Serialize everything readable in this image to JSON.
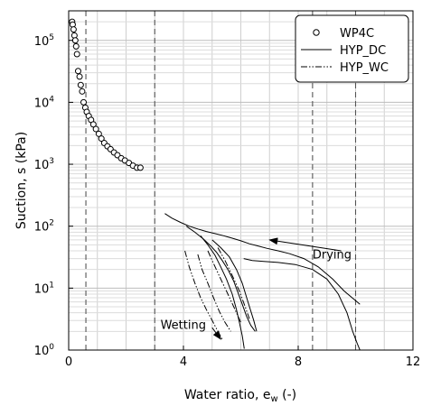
{
  "chart_data": {
    "type": "scatter",
    "xlabel": "Water ratio, e",
    "xlabel_subscript": "w",
    "xlabel_unit": "(-)",
    "ylabel": "Suction, s (kPa)",
    "xlim": [
      0,
      12
    ],
    "ylim": [
      1,
      300000
    ],
    "yscale": "log",
    "x_ticks": [
      0,
      4,
      8,
      12
    ],
    "y_ticks": [
      {
        "value": 1,
        "base": "10",
        "exp": "0"
      },
      {
        "value": 10,
        "base": "10",
        "exp": "1"
      },
      {
        "value": 100,
        "base": "10",
        "exp": "2"
      },
      {
        "value": 1000,
        "base": "10",
        "exp": "3"
      },
      {
        "value": 10000,
        "base": "10",
        "exp": "4"
      },
      {
        "value": 100000,
        "base": "10",
        "exp": "5"
      }
    ],
    "grid": true,
    "vertical_reference_lines": [
      0.6,
      3.0,
      8.5,
      10.0
    ],
    "legend": {
      "placement": "top-right",
      "entries": [
        {
          "label": "WP4C",
          "style": "circle-marker"
        },
        {
          "label": "HYP_DC",
          "style": "solid"
        },
        {
          "label": "HYP_WC",
          "style": "dash-dot-dot"
        }
      ]
    },
    "series": [
      {
        "name": "WP4C",
        "style": "circle-marker",
        "x": [
          0.12,
          0.14,
          0.17,
          0.2,
          0.23,
          0.26,
          0.29,
          0.33,
          0.38,
          0.42,
          0.47,
          0.52,
          0.58,
          0.63,
          0.7,
          0.78,
          0.86,
          0.95,
          1.05,
          1.14,
          1.24,
          1.35,
          1.46,
          1.58,
          1.7,
          1.83,
          1.96,
          2.1,
          2.24,
          2.38,
          2.5
        ],
        "y": [
          200000,
          180000,
          150000,
          120000,
          100000,
          80000,
          60000,
          32000,
          26000,
          19000,
          15000,
          10000,
          8200,
          7000,
          6000,
          5200,
          4400,
          3700,
          3100,
          2600,
          2200,
          1950,
          1750,
          1550,
          1400,
          1250,
          1150,
          1050,
          950,
          880,
          880
        ]
      },
      {
        "name": "HYP_DC",
        "style": "solid",
        "segments": [
          {
            "x": [
              3.35,
              3.6,
              3.9,
              4.2,
              4.5,
              4.8,
              5.1,
              5.4,
              5.7,
              6.0,
              6.3,
              6.6,
              6.9,
              7.3,
              7.7,
              8.2,
              8.7,
              9.2,
              9.6,
              10.15
            ],
            "y": [
              160,
              135,
              115,
              100,
              90,
              82,
              76,
              70,
              64,
              58,
              52,
              48,
              44,
              40,
              36,
              30,
              22,
              14,
              9,
              5.5
            ]
          },
          {
            "x": [
              4.1,
              4.4,
              4.7,
              4.95,
              5.15,
              5.35,
              5.55,
              5.75,
              5.9,
              6.05,
              6.2,
              6.35,
              6.5
            ],
            "y": [
              100,
              80,
              62,
              48,
              38,
              28,
              20,
              13,
              8.5,
              5.5,
              3.5,
              2.5,
              2.0
            ]
          },
          {
            "x": [
              4.6,
              4.85,
              5.1,
              5.3,
              5.5,
              5.7,
              5.85,
              5.95,
              6.05,
              6.12
            ],
            "y": [
              70,
              50,
              34,
              22,
              14,
              8,
              4.5,
              2.8,
              1.7,
              1.05
            ]
          },
          {
            "x": [
              5.0,
              5.3,
              5.6,
              5.85,
              6.05,
              6.25,
              6.45,
              6.55
            ],
            "y": [
              60,
              45,
              32,
              20,
              12,
              6,
              3,
              2.0
            ]
          },
          {
            "x": [
              6.1,
              6.4,
              6.8,
              7.3,
              7.9,
              8.5,
              9.0,
              9.4,
              9.7,
              9.9,
              10.05,
              10.15
            ],
            "y": [
              30,
              28,
              27,
              26,
              24,
              20,
              14,
              8,
              4,
              2,
              1.3,
              1.0
            ]
          }
        ]
      },
      {
        "name": "HYP_WC",
        "style": "dash-dot-dot",
        "segments": [
          {
            "x": [
              4.05,
              4.2,
              4.4,
              4.6,
              4.8,
              5.0,
              5.2,
              5.35
            ],
            "y": [
              40,
              22,
              12,
              7,
              4.5,
              3,
              2,
              1.5
            ]
          },
          {
            "x": [
              4.5,
              4.65,
              4.85,
              5.05,
              5.25,
              5.45,
              5.65
            ],
            "y": [
              35,
              20,
              12,
              7,
              4.2,
              2.8,
              2.0
            ]
          },
          {
            "x": [
              4.85,
              5.05,
              5.3,
              5.55,
              5.8,
              6.0
            ],
            "y": [
              40,
              25,
              14,
              8,
              4.5,
              2.8
            ]
          },
          {
            "x": [
              5.2,
              5.45,
              5.7,
              5.95,
              6.15,
              6.3
            ],
            "y": [
              45,
              28,
              16,
              9,
              5,
              3.2
            ]
          }
        ]
      }
    ],
    "annotations": [
      {
        "text": "Drying",
        "x": 8.5,
        "y": 30,
        "arrow": {
          "from": [
            9.5,
            40
          ],
          "to": [
            7.0,
            60
          ]
        }
      },
      {
        "text": "Wetting",
        "x": 3.2,
        "y": 2.2,
        "arrow": {
          "from": [
            5.0,
            2.3
          ],
          "to": [
            5.3,
            1.5
          ]
        }
      }
    ]
  }
}
